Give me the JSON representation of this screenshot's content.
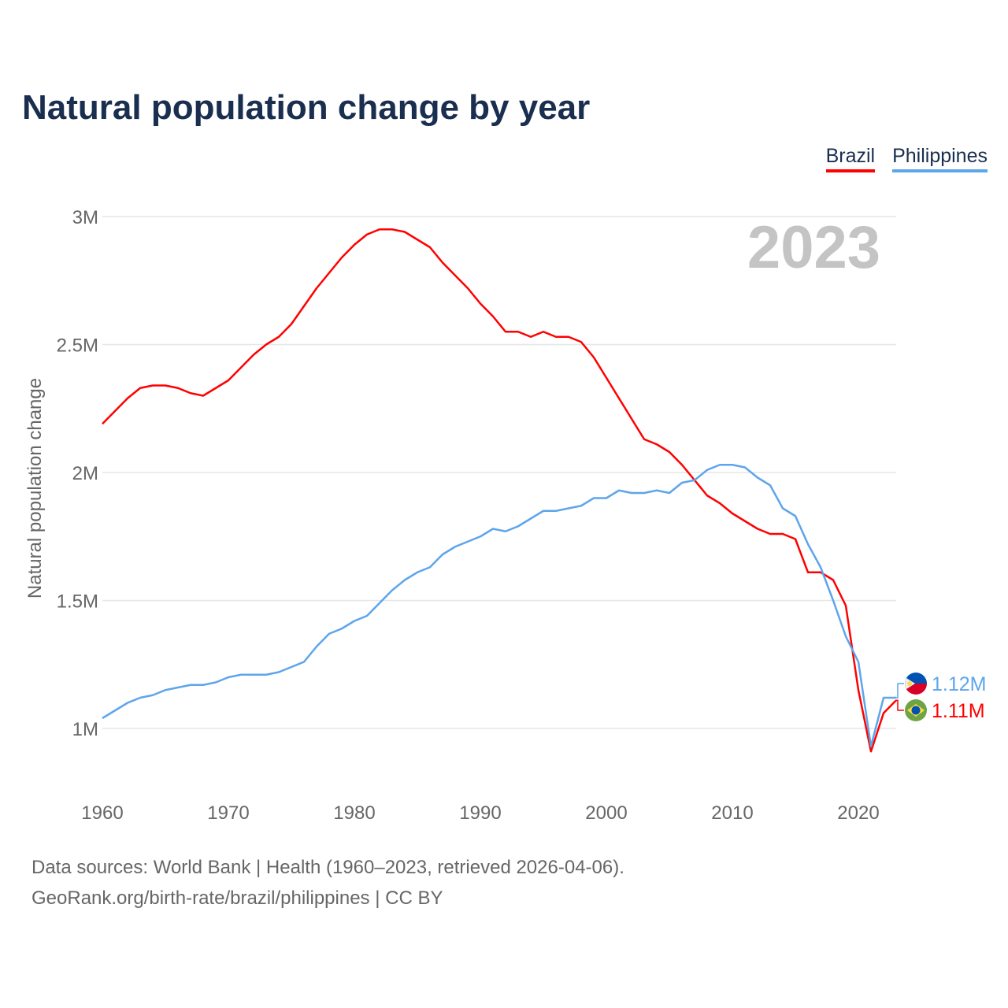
{
  "chart_data": {
    "type": "line",
    "title": "Natural population change by year",
    "xlabel": "",
    "ylabel": "Natural population change",
    "xlim": [
      1960,
      2023
    ],
    "ylim": [
      0.85,
      3.15
    ],
    "x_ticks": [
      1960,
      1970,
      1980,
      1990,
      2000,
      2010,
      2020
    ],
    "y_ticks": [
      {
        "v": 1,
        "label": "1M"
      },
      {
        "v": 1.5,
        "label": "1.5M"
      },
      {
        "v": 2,
        "label": "2M"
      },
      {
        "v": 2.5,
        "label": "2.5M"
      },
      {
        "v": 3,
        "label": "3M"
      }
    ],
    "grid": true,
    "legend_position": "top-right",
    "year_watermark": "2023",
    "x": [
      1960,
      1961,
      1962,
      1963,
      1964,
      1965,
      1966,
      1967,
      1968,
      1969,
      1970,
      1971,
      1972,
      1973,
      1974,
      1975,
      1976,
      1977,
      1978,
      1979,
      1980,
      1981,
      1982,
      1983,
      1984,
      1985,
      1986,
      1987,
      1988,
      1989,
      1990,
      1991,
      1992,
      1993,
      1994,
      1995,
      1996,
      1997,
      1998,
      1999,
      2000,
      2001,
      2002,
      2003,
      2004,
      2005,
      2006,
      2007,
      2008,
      2009,
      2010,
      2011,
      2012,
      2013,
      2014,
      2015,
      2016,
      2017,
      2018,
      2019,
      2020,
      2021,
      2022,
      2023
    ],
    "series": [
      {
        "name": "Brazil",
        "color": "#ff0000",
        "end_label": "1.11M",
        "flag": "brazil-flag",
        "values": [
          2.19,
          2.24,
          2.29,
          2.33,
          2.34,
          2.34,
          2.33,
          2.31,
          2.3,
          2.33,
          2.36,
          2.41,
          2.46,
          2.5,
          2.53,
          2.58,
          2.65,
          2.72,
          2.78,
          2.84,
          2.89,
          2.93,
          2.95,
          2.95,
          2.94,
          2.91,
          2.88,
          2.82,
          2.77,
          2.72,
          2.66,
          2.61,
          2.55,
          2.55,
          2.53,
          2.55,
          2.53,
          2.53,
          2.51,
          2.45,
          2.37,
          2.29,
          2.21,
          2.13,
          2.11,
          2.08,
          2.03,
          1.97,
          1.91,
          1.88,
          1.84,
          1.81,
          1.78,
          1.76,
          1.76,
          1.74,
          1.61,
          1.61,
          1.58,
          1.48,
          1.15,
          0.91,
          1.06,
          1.11
        ]
      },
      {
        "name": "Philippines",
        "color": "#5da5ec",
        "end_label": "1.12M",
        "flag": "philippines-flag",
        "values": [
          1.04,
          1.07,
          1.1,
          1.12,
          1.13,
          1.15,
          1.16,
          1.17,
          1.17,
          1.18,
          1.2,
          1.21,
          1.21,
          1.21,
          1.22,
          1.24,
          1.26,
          1.32,
          1.37,
          1.39,
          1.42,
          1.44,
          1.49,
          1.54,
          1.58,
          1.61,
          1.63,
          1.68,
          1.71,
          1.73,
          1.75,
          1.78,
          1.77,
          1.79,
          1.82,
          1.85,
          1.85,
          1.86,
          1.87,
          1.9,
          1.9,
          1.93,
          1.92,
          1.92,
          1.93,
          1.92,
          1.96,
          1.97,
          2.01,
          2.03,
          2.03,
          2.02,
          1.98,
          1.95,
          1.86,
          1.83,
          1.72,
          1.63,
          1.5,
          1.36,
          1.26,
          0.93,
          1.12,
          1.12
        ]
      }
    ]
  },
  "footer": {
    "line1": "Data sources: World Bank | Health (1960–2023, retrieved 2026-04-06).",
    "line2": "GeoRank.org/birth-rate/brazil/philippines | CC BY"
  }
}
